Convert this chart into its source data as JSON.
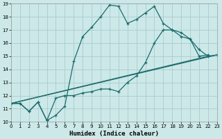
{
  "xlabel": "Humidex (Indice chaleur)",
  "xlim": [
    0,
    23
  ],
  "ylim": [
    10,
    19
  ],
  "xticks": [
    0,
    1,
    2,
    3,
    4,
    5,
    6,
    7,
    8,
    9,
    10,
    11,
    12,
    13,
    14,
    15,
    16,
    17,
    18,
    19,
    20,
    21,
    22,
    23
  ],
  "yticks": [
    10,
    11,
    12,
    13,
    14,
    15,
    16,
    17,
    18,
    19
  ],
  "background_color": "#cce8e8",
  "grid_color": "#aacccc",
  "line_color": "#1a6b6b",
  "line1_x": [
    0,
    1,
    2,
    3,
    4,
    5,
    6,
    7,
    8,
    9,
    10,
    11,
    12,
    13,
    14,
    15,
    16,
    17,
    18,
    19,
    20,
    21,
    22
  ],
  "line1_y": [
    11.4,
    11.4,
    10.8,
    11.5,
    10.1,
    10.5,
    11.2,
    14.6,
    16.5,
    17.2,
    18.0,
    18.9,
    18.8,
    17.5,
    17.8,
    18.3,
    18.8,
    17.5,
    17.0,
    16.8,
    16.3,
    15.0,
    15.1
  ],
  "line2_x": [
    0,
    1,
    2,
    3,
    4,
    5,
    6,
    7,
    8,
    9,
    10,
    11,
    12,
    13,
    14,
    15,
    16,
    17,
    18,
    19,
    20,
    21,
    22,
    23
  ],
  "line2_y": [
    11.4,
    11.4,
    10.8,
    11.5,
    10.1,
    11.8,
    12.0,
    12.0,
    12.2,
    12.3,
    12.5,
    12.5,
    12.3,
    13.0,
    13.5,
    14.5,
    16.0,
    17.0,
    17.0,
    16.5,
    16.3,
    15.5,
    15.0,
    15.1
  ],
  "line3_x": [
    0,
    23
  ],
  "line3_y": [
    11.4,
    15.1
  ],
  "line4_x": [
    0,
    23
  ],
  "line4_y": [
    11.4,
    15.1
  ]
}
